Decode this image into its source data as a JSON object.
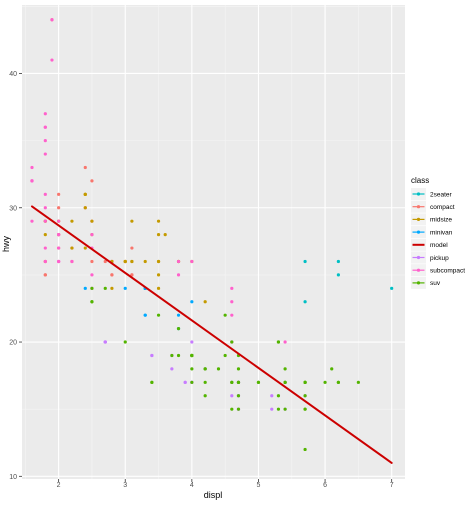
{
  "chart_data": {
    "type": "scatter",
    "title": "",
    "xlabel": "displ",
    "ylabel": "hwy",
    "xlim": [
      1.45,
      7.2
    ],
    "ylim": [
      9.8,
      45.1
    ],
    "x_ticks": [
      2,
      3,
      4,
      5,
      6,
      7
    ],
    "y_ticks": [
      10,
      20,
      30,
      40
    ],
    "grid": true,
    "legend": {
      "title": "class",
      "placement": "right"
    },
    "colors": {
      "2seater": "#00BFC4",
      "compact": "#F8766D",
      "midsize": "#C49A00",
      "minivan": "#00A9FF",
      "model": "#CC0000",
      "pickup": "#C77CFF",
      "subcompact": "#FF61CC",
      "suv": "#53B400"
    },
    "series": [
      {
        "name": "2seater",
        "points": [
          [
            5.7,
            26
          ],
          [
            5.7,
            23
          ],
          [
            6.2,
            26
          ],
          [
            6.2,
            25
          ],
          [
            7.0,
            24
          ]
        ]
      },
      {
        "name": "compact",
        "points": [
          [
            1.8,
            29
          ],
          [
            1.8,
            29
          ],
          [
            2.0,
            31
          ],
          [
            2.0,
            30
          ],
          [
            2.8,
            26
          ],
          [
            2.8,
            26
          ],
          [
            3.1,
            27
          ],
          [
            1.8,
            26
          ],
          [
            1.8,
            25
          ],
          [
            2.0,
            28
          ],
          [
            2.0,
            27
          ],
          [
            2.8,
            25
          ],
          [
            2.8,
            25
          ],
          [
            3.1,
            25
          ],
          [
            3.1,
            25
          ],
          [
            2.2,
            26
          ],
          [
            2.2,
            27
          ],
          [
            2.4,
            30
          ],
          [
            2.4,
            33
          ],
          [
            3.0,
            26
          ],
          [
            1.8,
            26
          ],
          [
            1.8,
            25
          ],
          [
            1.9,
            44
          ],
          [
            2.0,
            29
          ],
          [
            2.5,
            26
          ],
          [
            2.5,
            29
          ],
          [
            2.5,
            32
          ],
          [
            2.8,
            26
          ],
          [
            2.7,
            26
          ]
        ]
      },
      {
        "name": "midsize",
        "points": [
          [
            2.8,
            24
          ],
          [
            3.1,
            26
          ],
          [
            4.2,
            23
          ],
          [
            2.4,
            27
          ],
          [
            2.4,
            30
          ],
          [
            3.1,
            26
          ],
          [
            3.5,
            29
          ],
          [
            3.3,
            24
          ],
          [
            3.3,
            24
          ],
          [
            3.5,
            26
          ],
          [
            3.8,
            26
          ],
          [
            3.8,
            26
          ],
          [
            3.0,
            26
          ],
          [
            3.0,
            26
          ],
          [
            3.5,
            28
          ],
          [
            2.2,
            27
          ],
          [
            2.2,
            29
          ],
          [
            2.4,
            31
          ],
          [
            2.4,
            31
          ],
          [
            3.0,
            26
          ],
          [
            3.5,
            26
          ],
          [
            2.5,
            29
          ],
          [
            2.5,
            28
          ],
          [
            3.3,
            26
          ],
          [
            3.5,
            25
          ],
          [
            4.0,
            26
          ],
          [
            3.1,
            29
          ],
          [
            3.5,
            24
          ],
          [
            2.4,
            31
          ],
          [
            1.8,
            28
          ],
          [
            1.8,
            29
          ],
          [
            2.0,
            29
          ],
          [
            2.0,
            28
          ],
          [
            2.8,
            26
          ],
          [
            3.6,
            28
          ]
        ]
      },
      {
        "name": "minivan",
        "points": [
          [
            2.4,
            24
          ],
          [
            3.0,
            24
          ],
          [
            3.3,
            22
          ],
          [
            3.3,
            22
          ],
          [
            3.3,
            24
          ],
          [
            3.3,
            24
          ],
          [
            3.3,
            24
          ],
          [
            3.8,
            22
          ],
          [
            3.8,
            21
          ],
          [
            4.0,
            23
          ]
        ]
      },
      {
        "name": "pickup",
        "points": [
          [
            2.7,
            20
          ],
          [
            2.7,
            20
          ],
          [
            2.7,
            20
          ],
          [
            3.4,
            19
          ],
          [
            3.4,
            19
          ],
          [
            4.0,
            17
          ],
          [
            4.0,
            17
          ],
          [
            4.7,
            17
          ],
          [
            4.7,
            16
          ],
          [
            5.7,
            16
          ],
          [
            3.7,
            19
          ],
          [
            3.7,
            18
          ],
          [
            3.9,
            17
          ],
          [
            3.9,
            17
          ],
          [
            4.7,
            17
          ],
          [
            4.7,
            17
          ],
          [
            4.7,
            17
          ],
          [
            5.2,
            16
          ],
          [
            5.2,
            15
          ],
          [
            4.7,
            15
          ],
          [
            4.7,
            16
          ],
          [
            4.7,
            15
          ],
          [
            4.0,
            20
          ],
          [
            4.2,
            18
          ],
          [
            4.6,
            17
          ],
          [
            4.6,
            16
          ],
          [
            5.4,
            17
          ],
          [
            5.4,
            15
          ]
        ]
      },
      {
        "name": "subcompact",
        "points": [
          [
            1.6,
            33
          ],
          [
            1.6,
            32
          ],
          [
            1.6,
            32
          ],
          [
            1.6,
            29
          ],
          [
            1.6,
            32
          ],
          [
            1.8,
            34
          ],
          [
            1.8,
            36
          ],
          [
            1.8,
            36
          ],
          [
            1.8,
            29
          ],
          [
            1.8,
            26
          ],
          [
            1.8,
            27
          ],
          [
            1.8,
            30
          ],
          [
            1.8,
            31
          ],
          [
            2.0,
            26
          ],
          [
            2.0,
            26
          ],
          [
            2.0,
            28
          ],
          [
            2.0,
            26
          ],
          [
            2.0,
            29
          ],
          [
            2.0,
            28
          ],
          [
            2.0,
            27
          ],
          [
            2.5,
            27
          ],
          [
            1.9,
            44
          ],
          [
            1.9,
            41
          ],
          [
            1.8,
            37
          ],
          [
            1.8,
            35
          ],
          [
            4.6,
            23
          ],
          [
            4.6,
            22
          ],
          [
            4.6,
            20
          ],
          [
            5.4,
            20
          ],
          [
            3.8,
            26
          ],
          [
            3.8,
            25
          ],
          [
            4.0,
            26
          ],
          [
            4.6,
            24
          ],
          [
            2.2,
            26
          ],
          [
            2.5,
            25
          ],
          [
            2.5,
            24
          ],
          [
            2.5,
            28
          ]
        ]
      },
      {
        "name": "suv",
        "points": [
          [
            5.3,
            20
          ],
          [
            5.3,
            15
          ],
          [
            5.3,
            20
          ],
          [
            5.7,
            17
          ],
          [
            6.0,
            17
          ],
          [
            5.7,
            17
          ],
          [
            5.7,
            15
          ],
          [
            6.2,
            17
          ],
          [
            6.2,
            17
          ],
          [
            6.5,
            17
          ],
          [
            4.0,
            19
          ],
          [
            4.0,
            19
          ],
          [
            4.6,
            17
          ],
          [
            5.0,
            17
          ],
          [
            4.2,
            18
          ],
          [
            4.2,
            17
          ],
          [
            4.6,
            20
          ],
          [
            5.4,
            17
          ],
          [
            5.4,
            17
          ],
          [
            5.4,
            15
          ],
          [
            4.0,
            19
          ],
          [
            4.7,
            16
          ],
          [
            4.7,
            18
          ],
          [
            4.7,
            17
          ],
          [
            5.7,
            17
          ],
          [
            6.1,
            18
          ],
          [
            4.0,
            19
          ],
          [
            4.2,
            18
          ],
          [
            4.4,
            18
          ],
          [
            4.6,
            17
          ],
          [
            5.4,
            18
          ],
          [
            5.4,
            17
          ],
          [
            5.7,
            12
          ],
          [
            3.7,
            19
          ],
          [
            4.7,
            17
          ],
          [
            5.7,
            17
          ],
          [
            2.5,
            23
          ],
          [
            2.5,
            23
          ],
          [
            3.0,
            20
          ],
          [
            2.7,
            24
          ],
          [
            4.0,
            17
          ],
          [
            4.6,
            15
          ],
          [
            3.4,
            17
          ],
          [
            3.4,
            17
          ],
          [
            4.0,
            19
          ],
          [
            4.7,
            17
          ],
          [
            5.7,
            16
          ],
          [
            4.5,
            22
          ],
          [
            3.5,
            22
          ],
          [
            4.7,
            15
          ],
          [
            4.7,
            19
          ],
          [
            4.0,
            18
          ],
          [
            4.5,
            19
          ],
          [
            5.3,
            16
          ],
          [
            5.7,
            15
          ],
          [
            4.2,
            16
          ],
          [
            2.5,
            24
          ],
          [
            3.8,
            21
          ],
          [
            3.8,
            19
          ],
          [
            4.0,
            19
          ],
          [
            5.0,
            17
          ]
        ]
      }
    ],
    "model_line": {
      "name": "model",
      "points": [
        [
          1.6,
          30.1
        ],
        [
          7.0,
          11.0
        ]
      ]
    }
  }
}
